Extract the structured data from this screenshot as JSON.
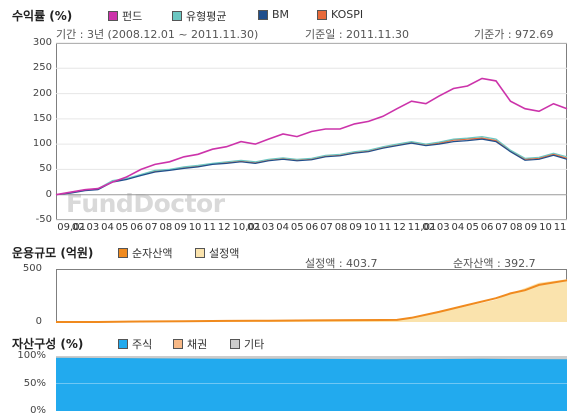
{
  "chart_data": [
    {
      "type": "line",
      "title": "수익률 (%)",
      "legend": [
        "펀드",
        "유형평균",
        "BM",
        "KOSPI"
      ],
      "colors": {
        "펀드": "#cc33aa",
        "유형평균": "#6cc7c2",
        "BM": "#1f4e8c",
        "KOSPI": "#e86a3a"
      },
      "info": {
        "period": "기간 : 3년 (2008.12.01 ~ 2011.11.30)",
        "base_date": "기준일 : 2011.11.30",
        "base_price": "기준가 : 972.69"
      },
      "ylim": [
        -50,
        300
      ],
      "yticks": [
        "300",
        "250",
        "200",
        "150",
        "100",
        "50",
        "0",
        "-50"
      ],
      "xticks_row1": [
        "09,01",
        "02",
        "03",
        "04",
        "05",
        "06",
        "07",
        "08",
        "09",
        "10",
        "11",
        "12",
        "10,01",
        "02",
        "03",
        "04",
        "05",
        "06",
        "07",
        "08",
        "09",
        "10",
        "11",
        "12",
        "11,01",
        "02",
        "03",
        "04",
        "05",
        "06",
        "07",
        "08",
        "09",
        "10",
        "11"
      ],
      "watermark": "FundDoctor",
      "x": [
        "2008-12",
        "2009-01",
        "2009-02",
        "2009-03",
        "2009-04",
        "2009-05",
        "2009-06",
        "2009-07",
        "2009-08",
        "2009-09",
        "2009-10",
        "2009-11",
        "2009-12",
        "2010-01",
        "2010-02",
        "2010-03",
        "2010-04",
        "2010-05",
        "2010-06",
        "2010-07",
        "2010-08",
        "2010-09",
        "2010-10",
        "2010-11",
        "2010-12",
        "2011-01",
        "2011-02",
        "2011-03",
        "2011-04",
        "2011-05",
        "2011-06",
        "2011-07",
        "2011-08",
        "2011-09",
        "2011-10",
        "2011-11",
        "2011-11-30"
      ],
      "series": [
        {
          "name": "펀드",
          "values": [
            0,
            5,
            10,
            12,
            25,
            35,
            50,
            60,
            65,
            75,
            80,
            90,
            95,
            105,
            100,
            110,
            120,
            115,
            125,
            130,
            130,
            140,
            145,
            155,
            170,
            185,
            180,
            195,
            210,
            215,
            230,
            225,
            185,
            170,
            165,
            180,
            170
          ]
        },
        {
          "name": "유형평균",
          "values": [
            0,
            5,
            10,
            12,
            28,
            32,
            40,
            48,
            50,
            55,
            58,
            62,
            65,
            68,
            65,
            70,
            73,
            70,
            72,
            78,
            80,
            85,
            88,
            95,
            100,
            105,
            100,
            104,
            110,
            112,
            115,
            110,
            88,
            72,
            74,
            82,
            75
          ]
        },
        {
          "name": "BM",
          "values": [
            0,
            3,
            8,
            10,
            25,
            30,
            38,
            45,
            48,
            52,
            55,
            60,
            62,
            65,
            62,
            67,
            70,
            67,
            69,
            75,
            77,
            82,
            85,
            92,
            97,
            102,
            97,
            100,
            105,
            107,
            110,
            105,
            85,
            68,
            70,
            78,
            70
          ]
        },
        {
          "name": "KOSPI",
          "values": [
            0,
            4,
            9,
            11,
            27,
            31,
            39,
            46,
            49,
            53,
            56,
            61,
            63,
            66,
            63,
            68,
            71,
            68,
            70,
            76,
            78,
            83,
            86,
            93,
            98,
            103,
            98,
            102,
            108,
            110,
            112,
            107,
            86,
            70,
            72,
            80,
            72
          ]
        }
      ]
    },
    {
      "type": "area",
      "title": "운용규모 (억원)",
      "legend": [
        "순자산액",
        "설정액"
      ],
      "colors": {
        "순자산액": "#f08a1e",
        "설정액": "#fae3ad"
      },
      "info": {
        "setup": "설정액 : 403.7",
        "net": "순자산액 : 392.7"
      },
      "ylim": [
        0,
        500
      ],
      "yticks": [
        "500",
        "0"
      ],
      "x": [
        "2008-12",
        "2009-03",
        "2009-06",
        "2009-09",
        "2009-12",
        "2010-03",
        "2010-06",
        "2010-09",
        "2010-12",
        "2011-01",
        "2011-03",
        "2011-05",
        "2011-07",
        "2011-08",
        "2011-09",
        "2011-10",
        "2011-11-30"
      ],
      "series": [
        {
          "name": "설정액",
          "values": [
            0,
            0,
            5,
            8,
            10,
            12,
            15,
            18,
            20,
            40,
            90,
            150,
            210,
            270,
            320,
            370,
            404
          ]
        },
        {
          "name": "순자산액",
          "values": [
            0,
            0,
            5,
            8,
            10,
            12,
            15,
            18,
            20,
            40,
            95,
            160,
            225,
            270,
            300,
            350,
            393
          ]
        }
      ]
    },
    {
      "type": "area",
      "title": "자산구성 (%)",
      "legend": [
        "주식",
        "채권",
        "기타"
      ],
      "colors": {
        "주식": "#22aaee",
        "채권": "#f8b987",
        "기타": "#cccccc"
      },
      "ylim": [
        0,
        100
      ],
      "yticks": [
        "100%",
        "50%",
        "0%"
      ],
      "x": [
        "2008-12",
        "2009-06",
        "2009-12",
        "2010-06",
        "2010-12",
        "2011-06",
        "2011-11-30"
      ],
      "series": [
        {
          "name": "주식",
          "values": [
            97,
            96,
            95,
            95,
            94,
            95,
            94
          ]
        },
        {
          "name": "채권",
          "values": [
            0,
            0,
            0,
            0,
            0,
            0,
            0
          ]
        },
        {
          "name": "기타",
          "values": [
            3,
            4,
            5,
            5,
            6,
            5,
            6
          ]
        }
      ]
    }
  ]
}
